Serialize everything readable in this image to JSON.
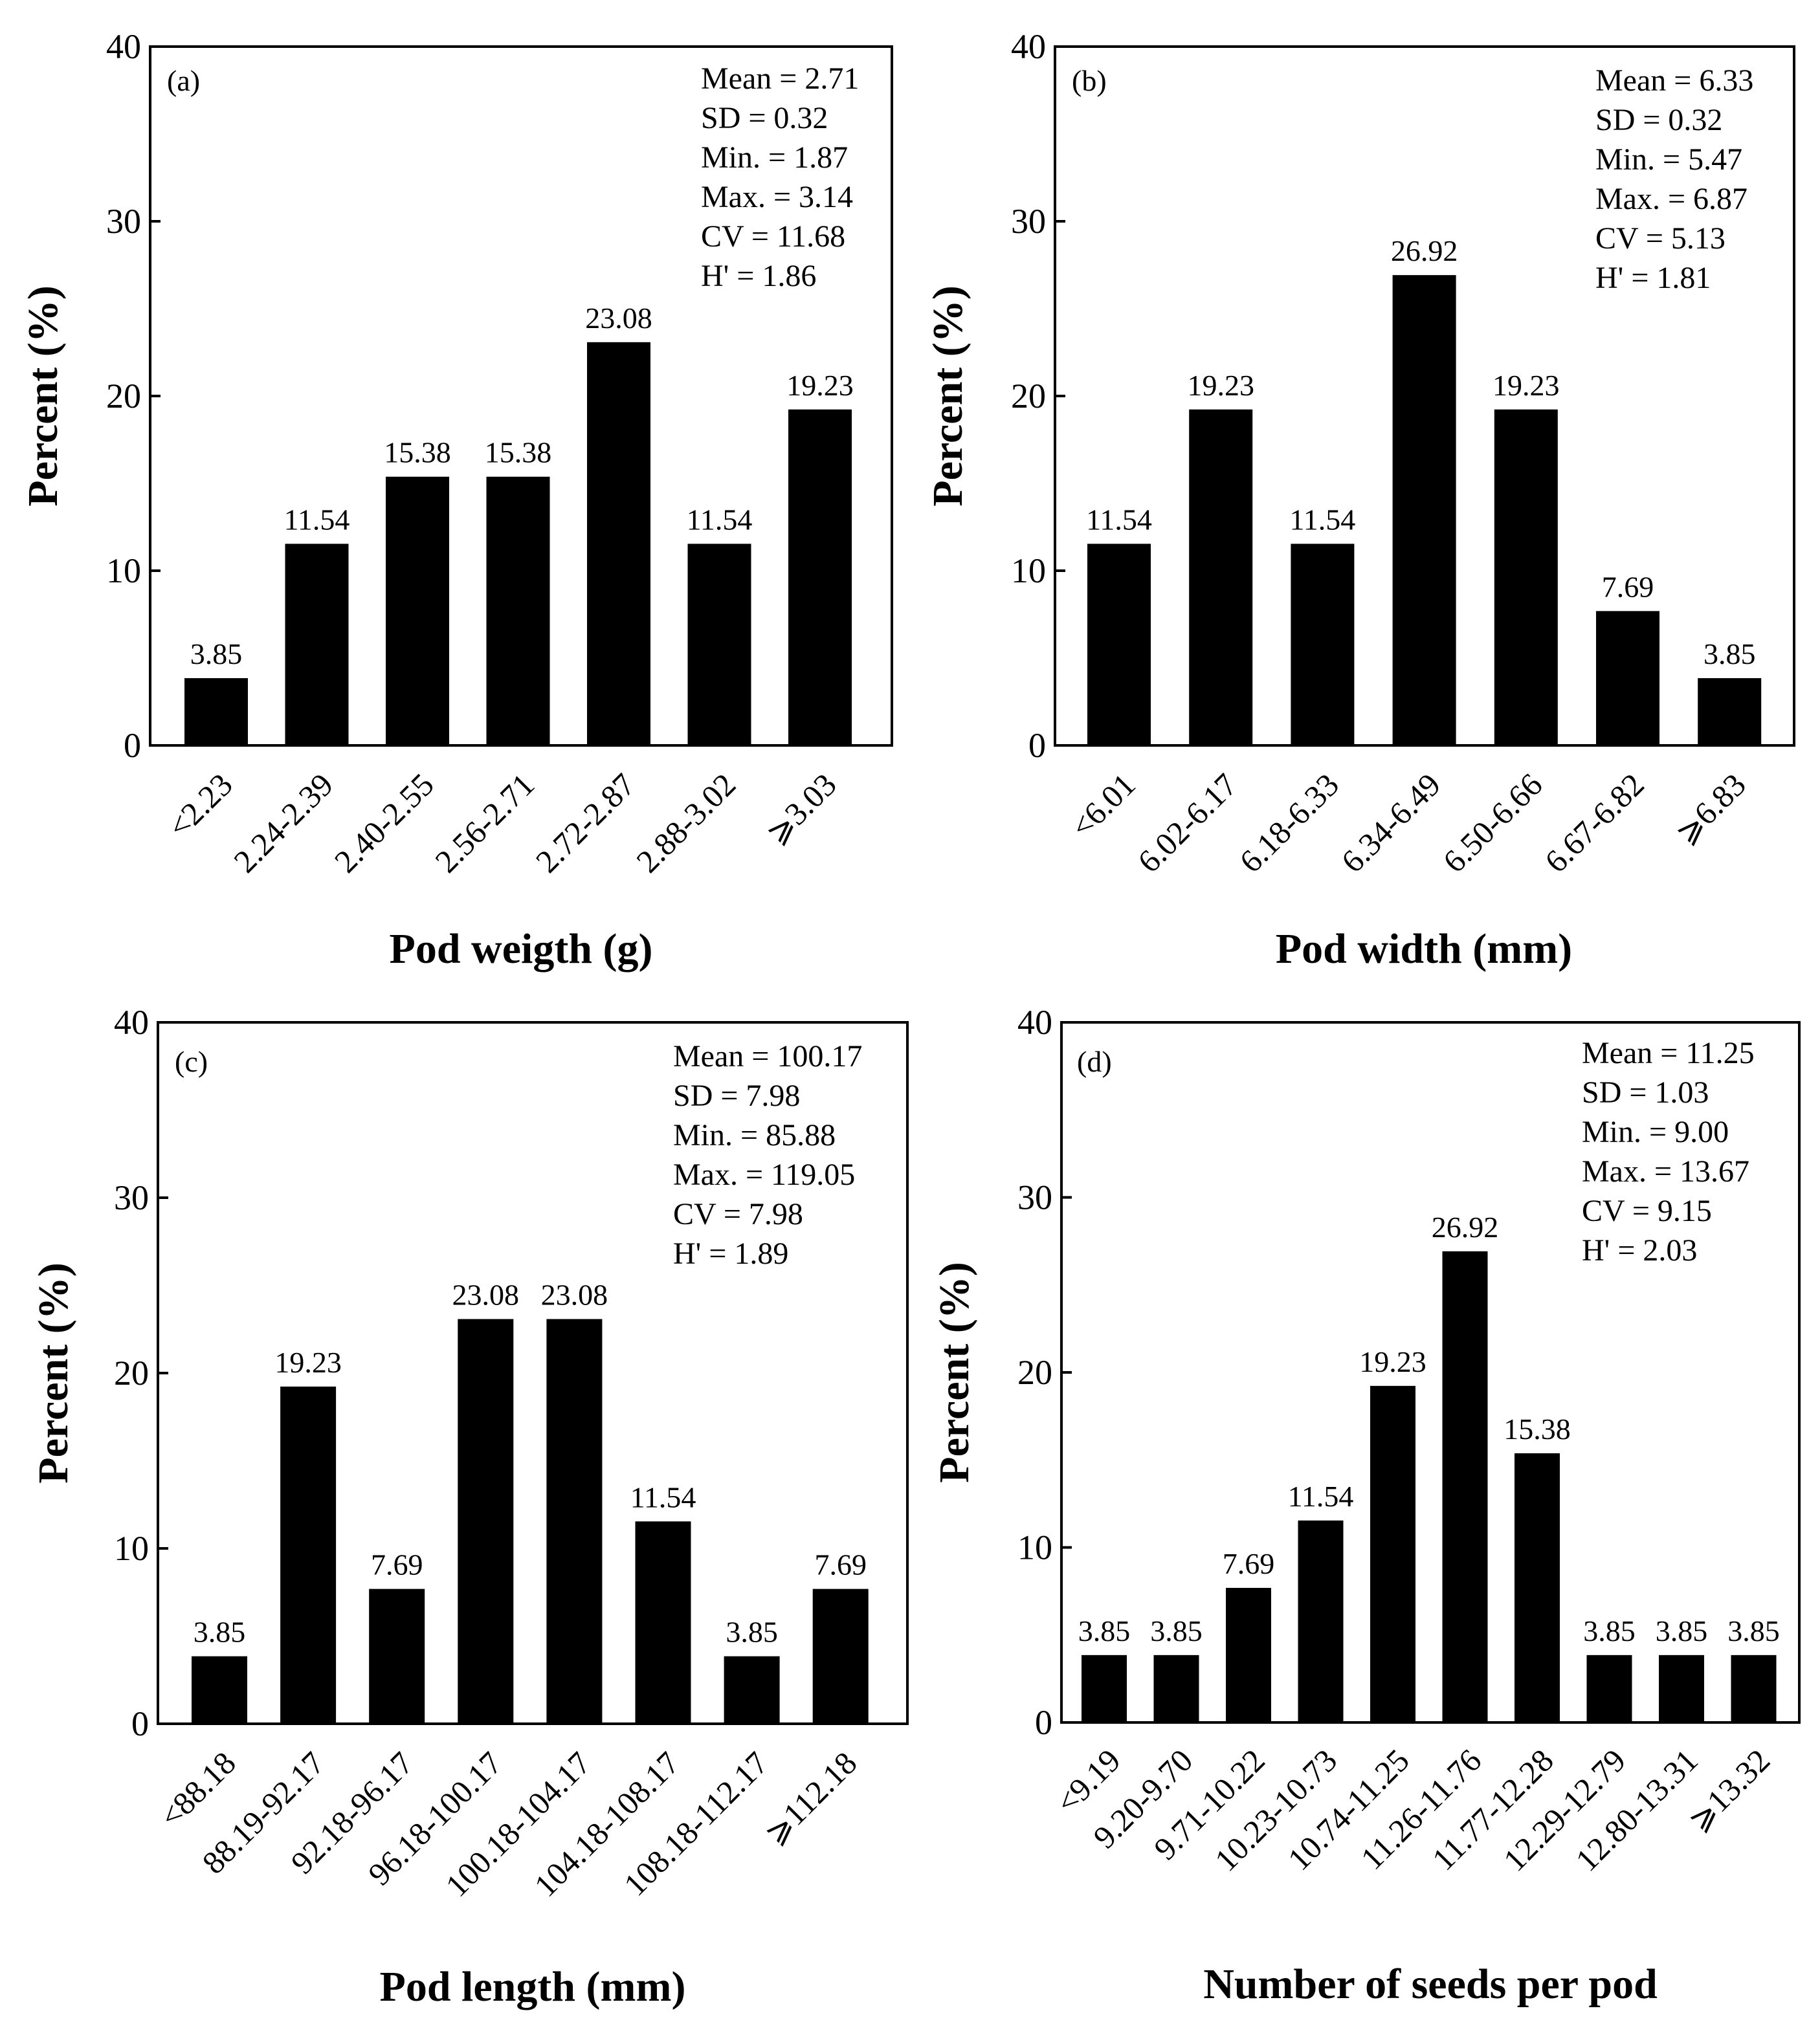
{
  "chart_data": [
    {
      "type": "bar",
      "panel_label": "(a)",
      "title": "",
      "xlabel": "Pod weigth (g)",
      "ylabel": "Percent (%)",
      "ylim": [
        0,
        40
      ],
      "yticks": [
        0,
        10,
        20,
        30,
        40
      ],
      "categories": [
        "<2.23",
        "2.24-2.39",
        "2.40-2.55",
        "2.56-2.71",
        "2.72-2.87",
        "2.88-3.02",
        "⩾3.03"
      ],
      "values": [
        3.85,
        11.54,
        15.38,
        15.38,
        23.08,
        11.54,
        19.23
      ],
      "value_labels": [
        "3.85",
        "11.54",
        "15.38",
        "15.38",
        "23.08",
        "11.54",
        "19.23"
      ],
      "stats": [
        "Mean = 2.71",
        "SD = 0.32",
        "Min. = 1.87",
        "Max. = 3.14",
        "CV = 11.68",
        "H' = 1.86"
      ]
    },
    {
      "type": "bar",
      "panel_label": "(b)",
      "title": "",
      "xlabel": "Pod width (mm)",
      "ylabel": "Percent (%)",
      "ylim": [
        0,
        40
      ],
      "yticks": [
        0,
        10,
        20,
        30,
        40
      ],
      "categories": [
        "<6.01",
        "6.02-6.17",
        "6.18-6.33",
        "6.34-6.49",
        "6.50-6.66",
        "6.67-6.82",
        "⩾6.83"
      ],
      "values": [
        11.54,
        19.23,
        11.54,
        26.92,
        19.23,
        7.69,
        3.85
      ],
      "value_labels": [
        "11.54",
        "19.23",
        "11.54",
        "26.92",
        "19.23",
        "7.69",
        "3.85"
      ],
      "stats": [
        "Mean = 6.33",
        "SD = 0.32",
        "Min. = 5.47",
        "Max. = 6.87",
        "CV = 5.13",
        "H' = 1.81"
      ]
    },
    {
      "type": "bar",
      "panel_label": "(c)",
      "title": "",
      "xlabel": "Pod length (mm)",
      "ylabel": "Percent (%)",
      "ylim": [
        0,
        40
      ],
      "yticks": [
        0,
        10,
        20,
        30,
        40
      ],
      "categories": [
        "<88.18",
        "88.19-92.17",
        "92.18-96.17",
        "96.18-100.17",
        "100.18-104.17",
        "104.18-108.17",
        "108.18-112.17",
        "⩾112.18"
      ],
      "values": [
        3.85,
        19.23,
        7.69,
        23.08,
        23.08,
        11.54,
        3.85,
        7.69
      ],
      "value_labels": [
        "3.85",
        "19.23",
        "7.69",
        "23.08",
        "23.08",
        "11.54",
        "3.85",
        "7.69"
      ],
      "stats": [
        "Mean = 100.17",
        "SD = 7.98",
        "Min. = 85.88",
        "Max. = 119.05",
        "CV = 7.98",
        "H' = 1.89"
      ]
    },
    {
      "type": "bar",
      "panel_label": "(d)",
      "title": "",
      "xlabel": "Number of seeds per pod",
      "ylabel": "Percent (%)",
      "ylim": [
        0,
        40
      ],
      "yticks": [
        0,
        10,
        20,
        30,
        40
      ],
      "categories": [
        "<9.19",
        "9.20-9.70",
        "9.71-10.22",
        "10.23-10.73",
        "10.74-11.25",
        "11.26-11.76",
        "11.77-12.28",
        "12.29-12.79",
        "12.80-13.31",
        "⩾13.32"
      ],
      "values": [
        3.85,
        3.85,
        7.69,
        11.54,
        19.23,
        26.92,
        15.38,
        3.85,
        3.85,
        3.85
      ],
      "value_labels": [
        "3.85",
        "3.85",
        "7.69",
        "11.54",
        "19.23",
        "26.92",
        "15.38",
        "3.85",
        "3.85",
        "3.85"
      ],
      "stats": [
        "Mean = 11.25",
        "SD = 1.03",
        "Min. = 9.00",
        "Max. = 13.67",
        "CV = 9.15",
        "H' = 2.03"
      ]
    }
  ]
}
